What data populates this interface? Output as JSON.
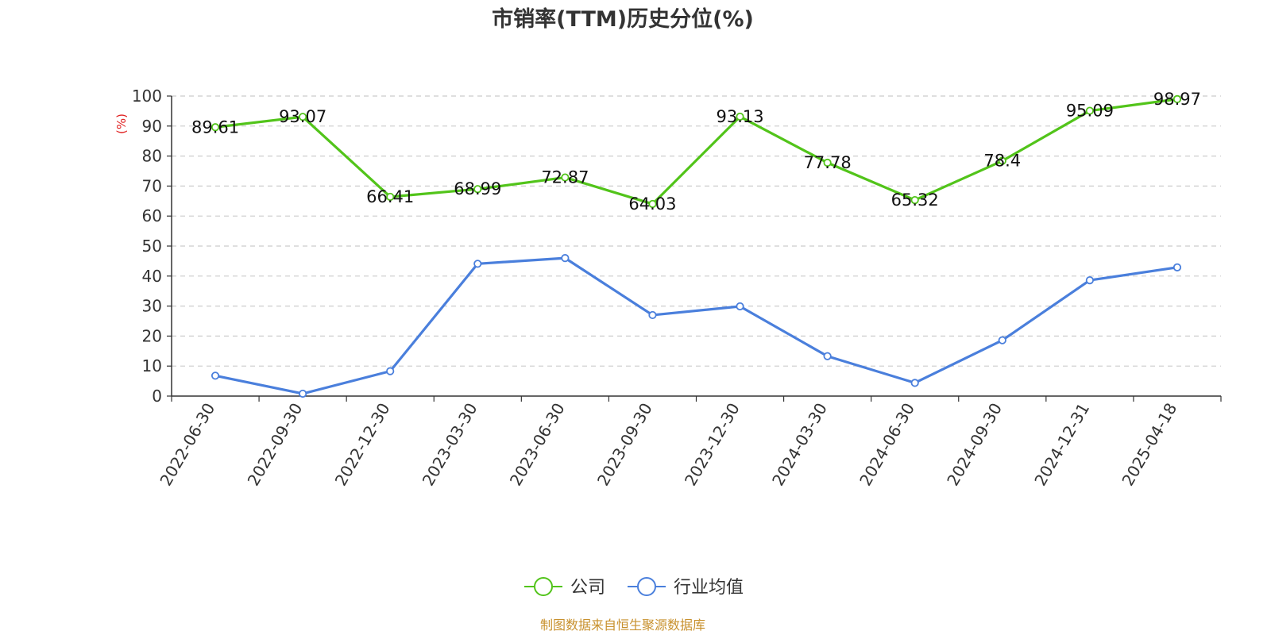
{
  "chart_data": {
    "type": "line",
    "title": "市销率(TTM)历史分位(%)",
    "ylabel": "(%)",
    "xlabel": "",
    "ylim": [
      0,
      100
    ],
    "yticks": [
      0,
      10,
      20,
      30,
      40,
      50,
      60,
      70,
      80,
      90,
      100
    ],
    "grid": true,
    "legend_position": "bottom",
    "categories": [
      "2022-06-30",
      "2022-09-30",
      "2022-12-30",
      "2023-03-30",
      "2023-06-30",
      "2023-09-30",
      "2023-12-30",
      "2024-03-30",
      "2024-06-30",
      "2024-09-30",
      "2024-12-31",
      "2025-04-18"
    ],
    "series": [
      {
        "name": "公司",
        "color": "#52c41a",
        "show_labels": true,
        "values": [
          89.61,
          93.07,
          66.41,
          68.99,
          72.87,
          64.03,
          93.13,
          77.78,
          65.32,
          78.4,
          95.09,
          98.97
        ],
        "labels": [
          "89.61",
          "93.07",
          "66.41",
          "68.99",
          "72.87",
          "64.03",
          "93.13",
          "77.78",
          "65.32",
          "78.4",
          "95.09",
          "98.97"
        ]
      },
      {
        "name": "行业均值",
        "color": "#4a7fdc",
        "show_labels": false,
        "values": [
          6.8,
          0.8,
          8.3,
          44.1,
          46.0,
          27.0,
          29.9,
          13.3,
          4.4,
          18.6,
          38.6,
          42.9
        ]
      }
    ],
    "source": "制图数据来自恒生聚源数据库",
    "source_color": "#c8912e",
    "ylabel_color": "#e02020"
  }
}
